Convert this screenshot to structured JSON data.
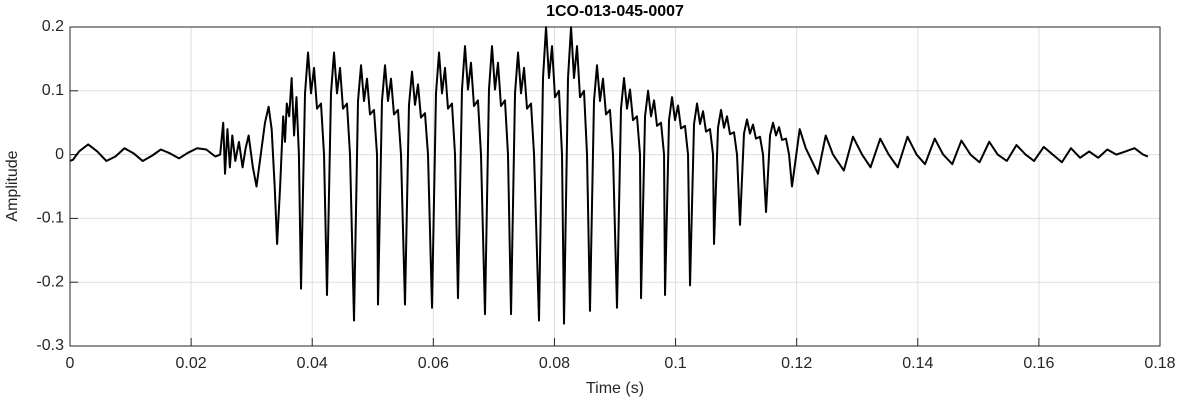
{
  "chart_data": {
    "type": "line",
    "title": "1CO-013-045-0007",
    "x_label": "Time (s)",
    "y_label": "Amplitude",
    "color": "#000000",
    "grid": true,
    "xlim": [
      0,
      0.18
    ],
    "xticks": [
      0,
      0.02,
      0.04,
      0.06,
      0.08,
      0.1,
      0.12,
      0.14,
      0.16,
      0.18
    ],
    "ylim": [
      -0.3,
      0.2
    ],
    "yticks": [
      -0.3,
      -0.2,
      -0.1,
      0,
      0.1,
      0.2
    ],
    "x": [
      0,
      0.0005,
      0.0015,
      0.003,
      0.0045,
      0.006,
      0.0075,
      0.009,
      0.0105,
      0.012,
      0.0135,
      0.015,
      0.0165,
      0.018,
      0.0195,
      0.021,
      0.0225,
      0.024,
      0.0248,
      0.0253,
      0.0256,
      0.026,
      0.0264,
      0.0268,
      0.0273,
      0.0279,
      0.0285,
      0.029,
      0.0295,
      0.0302,
      0.0308,
      0.0315,
      0.0322,
      0.0328,
      0.0333,
      0.0338,
      0.0342,
      0.0347,
      0.0352,
      0.0355,
      0.0358,
      0.0362,
      0.0366,
      0.037,
      0.0374,
      0.0378,
      0.03815,
      0.03881,
      0.03931,
      0.0398,
      0.0403,
      0.04079,
      0.04145,
      0.04195,
      0.04244,
      0.0431,
      0.0436,
      0.04409,
      0.04459,
      0.04508,
      0.04574,
      0.04624,
      0.0469,
      0.04756,
      0.04806,
      0.04855,
      0.04905,
      0.04954,
      0.0502,
      0.0507,
      0.05086,
      0.05152,
      0.05202,
      0.05251,
      0.05301,
      0.0535,
      0.05416,
      0.05466,
      0.05532,
      0.05598,
      0.05648,
      0.05697,
      0.05747,
      0.05796,
      0.05862,
      0.05912,
      0.05978,
      0.06044,
      0.06094,
      0.06143,
      0.06193,
      0.06242,
      0.06308,
      0.06358,
      0.06407,
      0.06473,
      0.06523,
      0.06572,
      0.06622,
      0.06671,
      0.06737,
      0.06787,
      0.06853,
      0.06919,
      0.06969,
      0.07018,
      0.07068,
      0.07117,
      0.07183,
      0.07233,
      0.07283,
      0.07349,
      0.07399,
      0.07448,
      0.07498,
      0.07547,
      0.07613,
      0.07663,
      0.07745,
      0.07811,
      0.07861,
      0.0791,
      0.0796,
      0.08009,
      0.08075,
      0.08125,
      0.08158,
      0.08224,
      0.08274,
      0.08323,
      0.08373,
      0.08422,
      0.08488,
      0.08538,
      0.08587,
      0.08653,
      0.08703,
      0.08752,
      0.08802,
      0.08851,
      0.08917,
      0.08967,
      0.09033,
      0.09099,
      0.09149,
      0.09198,
      0.09248,
      0.09297,
      0.09363,
      0.09413,
      0.0943,
      0.09496,
      0.09546,
      0.09595,
      0.09645,
      0.09694,
      0.0976,
      0.0981,
      0.09826,
      0.09892,
      0.09942,
      0.09991,
      0.10041,
      0.1009,
      0.10156,
      0.10206,
      0.10239,
      0.10305,
      0.10355,
      0.10404,
      0.10454,
      0.10503,
      0.10569,
      0.10619,
      0.10635,
      0.10701,
      0.10751,
      0.108,
      0.1085,
      0.10899,
      0.10965,
      0.11015,
      0.11064,
      0.1113,
      0.1118,
      0.11229,
      0.11279,
      0.11328,
      0.11394,
      0.11444,
      0.11494,
      0.1156,
      0.1161,
      0.11659,
      0.11709,
      0.11758,
      0.11824,
      0.11874,
      0.11923,
      0.1205,
      0.1215,
      0.12352,
      0.1248,
      0.126,
      0.1278,
      0.1293,
      0.1308,
      0.1322,
      0.1338,
      0.1352,
      0.1367,
      0.1383,
      0.1398,
      0.1412,
      0.1428,
      0.1442,
      0.1457,
      0.1472,
      0.1487,
      0.1502,
      0.1518,
      0.1532,
      0.1547,
      0.1563,
      0.1578,
      0.1592,
      0.1608,
      0.1623,
      0.1638,
      0.1653,
      0.1668,
      0.1683,
      0.1698,
      0.1713,
      0.1728,
      0.1743,
      0.1758,
      0.1772,
      0.178
    ],
    "values": [
      -0.01,
      -0.008,
      0.005,
      0.016,
      0.005,
      -0.01,
      -0.003,
      0.01,
      0.002,
      -0.01,
      -0.002,
      0.008,
      0.002,
      -0.006,
      0.003,
      0.01,
      0.008,
      -0.003,
      0.0,
      0.05,
      -0.03,
      0.04,
      -0.02,
      0.03,
      -0.01,
      0.02,
      -0.02,
      0.01,
      0.03,
      -0.02,
      -0.05,
      0.0,
      0.05,
      0.075,
      0.04,
      -0.05,
      -0.14,
      -0.05,
      0.06,
      0.02,
      0.08,
      0.06,
      0.12,
      0.03,
      0.09,
      0.0,
      -0.21,
      0.096,
      0.16,
      0.096,
      0.136,
      0.072,
      0.08,
      0.0,
      -0.22,
      0.096,
      0.16,
      0.096,
      0.136,
      0.072,
      0.08,
      0.0,
      -0.26,
      0.084,
      0.14,
      0.084,
      0.119,
      0.063,
      0.07,
      0.0,
      -0.235,
      0.084,
      0.14,
      0.084,
      0.119,
      0.063,
      0.07,
      0.0,
      -0.235,
      0.078,
      0.13,
      0.078,
      0.11,
      0.058,
      0.065,
      0.0,
      -0.24,
      0.096,
      0.16,
      0.096,
      0.136,
      0.072,
      0.08,
      0.0,
      -0.225,
      0.102,
      0.17,
      0.102,
      0.144,
      0.076,
      0.085,
      0.0,
      -0.25,
      0.102,
      0.17,
      0.102,
      0.144,
      0.076,
      0.085,
      0.0,
      -0.25,
      0.096,
      0.16,
      0.096,
      0.136,
      0.072,
      0.08,
      0.0,
      -0.26,
      0.12,
      0.2,
      0.12,
      0.17,
      0.09,
      0.1,
      0.0,
      -0.265,
      0.12,
      0.2,
      0.12,
      0.17,
      0.09,
      0.1,
      0.0,
      -0.245,
      0.084,
      0.14,
      0.084,
      0.119,
      0.063,
      0.07,
      0.0,
      -0.24,
      0.072,
      0.12,
      0.072,
      0.102,
      0.054,
      0.06,
      0.0,
      -0.225,
      0.06,
      0.1,
      0.06,
      0.085,
      0.045,
      0.05,
      0.0,
      -0.22,
      0.054,
      0.09,
      0.054,
      0.077,
      0.041,
      0.045,
      0.0,
      -0.205,
      0.048,
      0.08,
      0.048,
      0.068,
      0.036,
      0.04,
      0.0,
      -0.14,
      0.042,
      0.07,
      0.042,
      0.06,
      0.032,
      0.035,
      0.0,
      -0.11,
      0.033,
      0.055,
      0.033,
      0.047,
      0.025,
      0.028,
      0.0,
      -0.09,
      0.03,
      0.05,
      0.03,
      0.043,
      0.023,
      0.025,
      0.0,
      -0.05,
      0.04,
      0.01,
      -0.03,
      0.03,
      0.0,
      -0.025,
      0.028,
      0.0,
      -0.02,
      0.025,
      0.0,
      -0.02,
      0.028,
      0.0,
      -0.015,
      0.025,
      0.0,
      -0.015,
      0.022,
      0.0,
      -0.012,
      0.02,
      0.0,
      -0.01,
      0.015,
      0.0,
      -0.01,
      0.012,
      0.0,
      -0.012,
      0.01,
      -0.005,
      0.005,
      -0.005,
      0.008,
      0.0,
      0.005,
      0.01,
      0.0,
      -0.003
    ]
  }
}
